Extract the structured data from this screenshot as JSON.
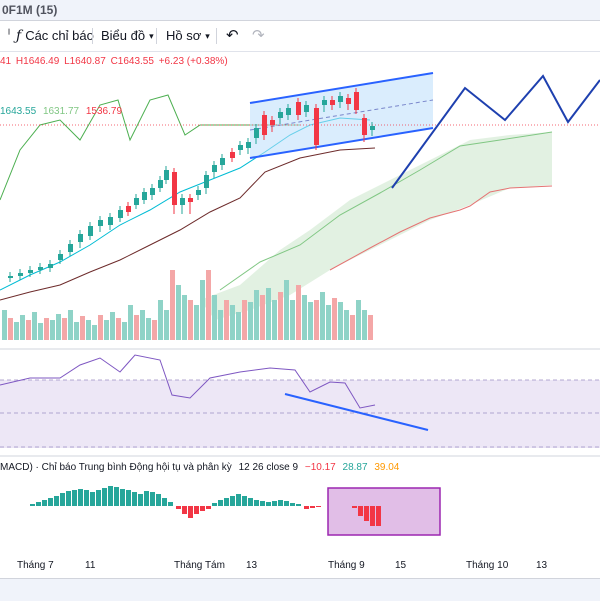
{
  "title_bar": {
    "text": "0F1M (15)"
  },
  "toolbar": {
    "indicators_label": "Các chỉ báo",
    "chart_label": "Biểu đồ",
    "profile_label": "Hồ sơ"
  },
  "ohlc": {
    "open": "41",
    "high": "H1646.49",
    "low": "L1640.87",
    "close": "C1643.55",
    "change": "+6.23 (+0.38%)"
  },
  "ma_legend": {
    "v1": "1643.55",
    "v2": "1631.77",
    "v3": "1536.79"
  },
  "macd_legend": {
    "name": "MACD) · Chỉ báo Trung bình Động hội tụ và phân kỳ",
    "params": "12 26 close 9",
    "v1": "−10.17",
    "v2": "28.87",
    "v3": "39.04"
  },
  "x_axis": {
    "ticks": [
      "Tháng 7",
      "11",
      "Tháng Tám",
      "13",
      "Tháng 9",
      "15",
      "Tháng 10",
      "13"
    ]
  },
  "colors": {
    "up": "#26a69a",
    "down": "#f23645",
    "channel_line": "#2962ff",
    "cloud": "#cfe8cf",
    "rsi_band": "#ede7f6",
    "macd_box": "#e1bee7",
    "ma_green": "#4caf50",
    "ma_teal": "#00bcd4",
    "ma_brown": "#6d2b2b"
  }
}
